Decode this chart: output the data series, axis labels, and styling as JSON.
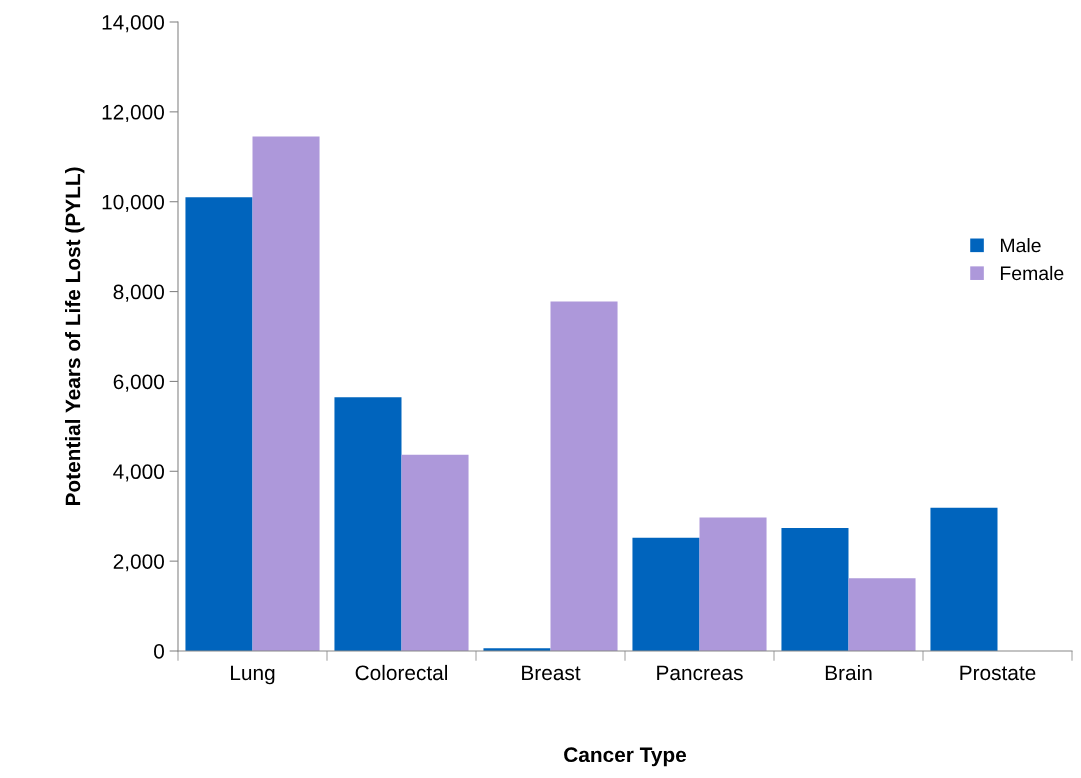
{
  "chart_data": {
    "type": "bar",
    "xlabel": "Cancer Type",
    "ylabel": "Potential Years of Life Lost (PYLL)",
    "categories": [
      "Lung",
      "Colorectal",
      "Breast",
      "Pancreas",
      "Brain",
      "Prostate"
    ],
    "series": [
      {
        "name": "Male",
        "color": "#0064bd",
        "values": [
          10100,
          5650,
          60,
          2520,
          2740,
          3190
        ]
      },
      {
        "name": "Female",
        "color": "#ad98da",
        "values": [
          11450,
          4370,
          7780,
          2970,
          1620,
          null
        ]
      }
    ],
    "ylim": [
      0,
      14000
    ],
    "yticks": [
      {
        "value": 0,
        "label": "0"
      },
      {
        "value": 2000,
        "label": "2,000"
      },
      {
        "value": 4000,
        "label": "4,000"
      },
      {
        "value": 6000,
        "label": "6,000"
      },
      {
        "value": 8000,
        "label": "8,000"
      },
      {
        "value": 10000,
        "label": "10,000"
      },
      {
        "value": 12000,
        "label": "12,000"
      },
      {
        "value": 14000,
        "label": "14,000"
      }
    ],
    "grid": false,
    "legend": "right"
  }
}
